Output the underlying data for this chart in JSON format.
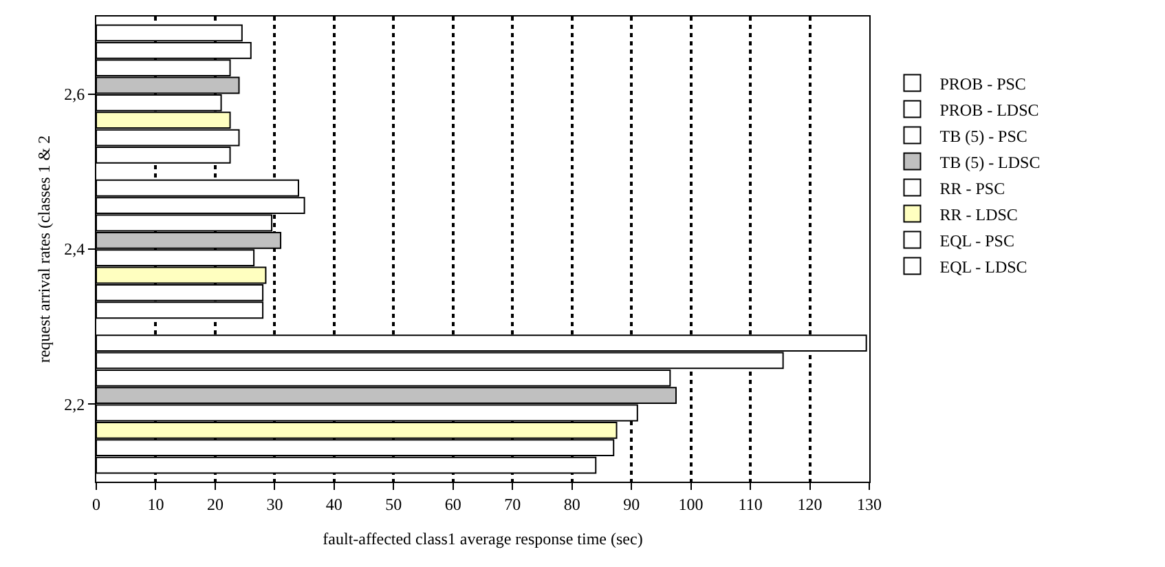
{
  "chart_data": {
    "type": "bar",
    "orientation": "horizontal",
    "xlabel": "fault-affected class1 average response time (sec)",
    "ylabel": "request arrival rates (classes 1 & 2",
    "categories": [
      "2,6",
      "2,4",
      "2,2"
    ],
    "series": [
      {
        "name": "PROB - PSC",
        "color": "#ffffff",
        "values": [
          24.5,
          34,
          129.5
        ]
      },
      {
        "name": "PROB - LDSC",
        "color": "#ffffff",
        "values": [
          26,
          35,
          115.5
        ]
      },
      {
        "name": "TB (5) - PSC",
        "color": "#ffffff",
        "values": [
          22.5,
          29.5,
          96.5
        ]
      },
      {
        "name": "TB (5) - LDSC",
        "color": "#c0c0c0",
        "values": [
          24,
          31,
          97.5
        ]
      },
      {
        "name": "RR - PSC",
        "color": "#ffffff",
        "values": [
          21,
          26.5,
          91
        ]
      },
      {
        "name": "RR - LDSC",
        "color": "#ffffc0",
        "values": [
          22.5,
          28.5,
          87.5
        ]
      },
      {
        "name": "EQL - PSC",
        "color": "#ffffff",
        "values": [
          24,
          28,
          87
        ]
      },
      {
        "name": "EQL - LDSC",
        "color": "#ffffff",
        "values": [
          22.5,
          28,
          84
        ]
      }
    ],
    "xlim": [
      0,
      130
    ],
    "xticks": [
      0,
      10,
      20,
      30,
      40,
      50,
      60,
      70,
      80,
      90,
      100,
      110,
      120,
      130
    ],
    "grid": "x",
    "legend": "right"
  }
}
